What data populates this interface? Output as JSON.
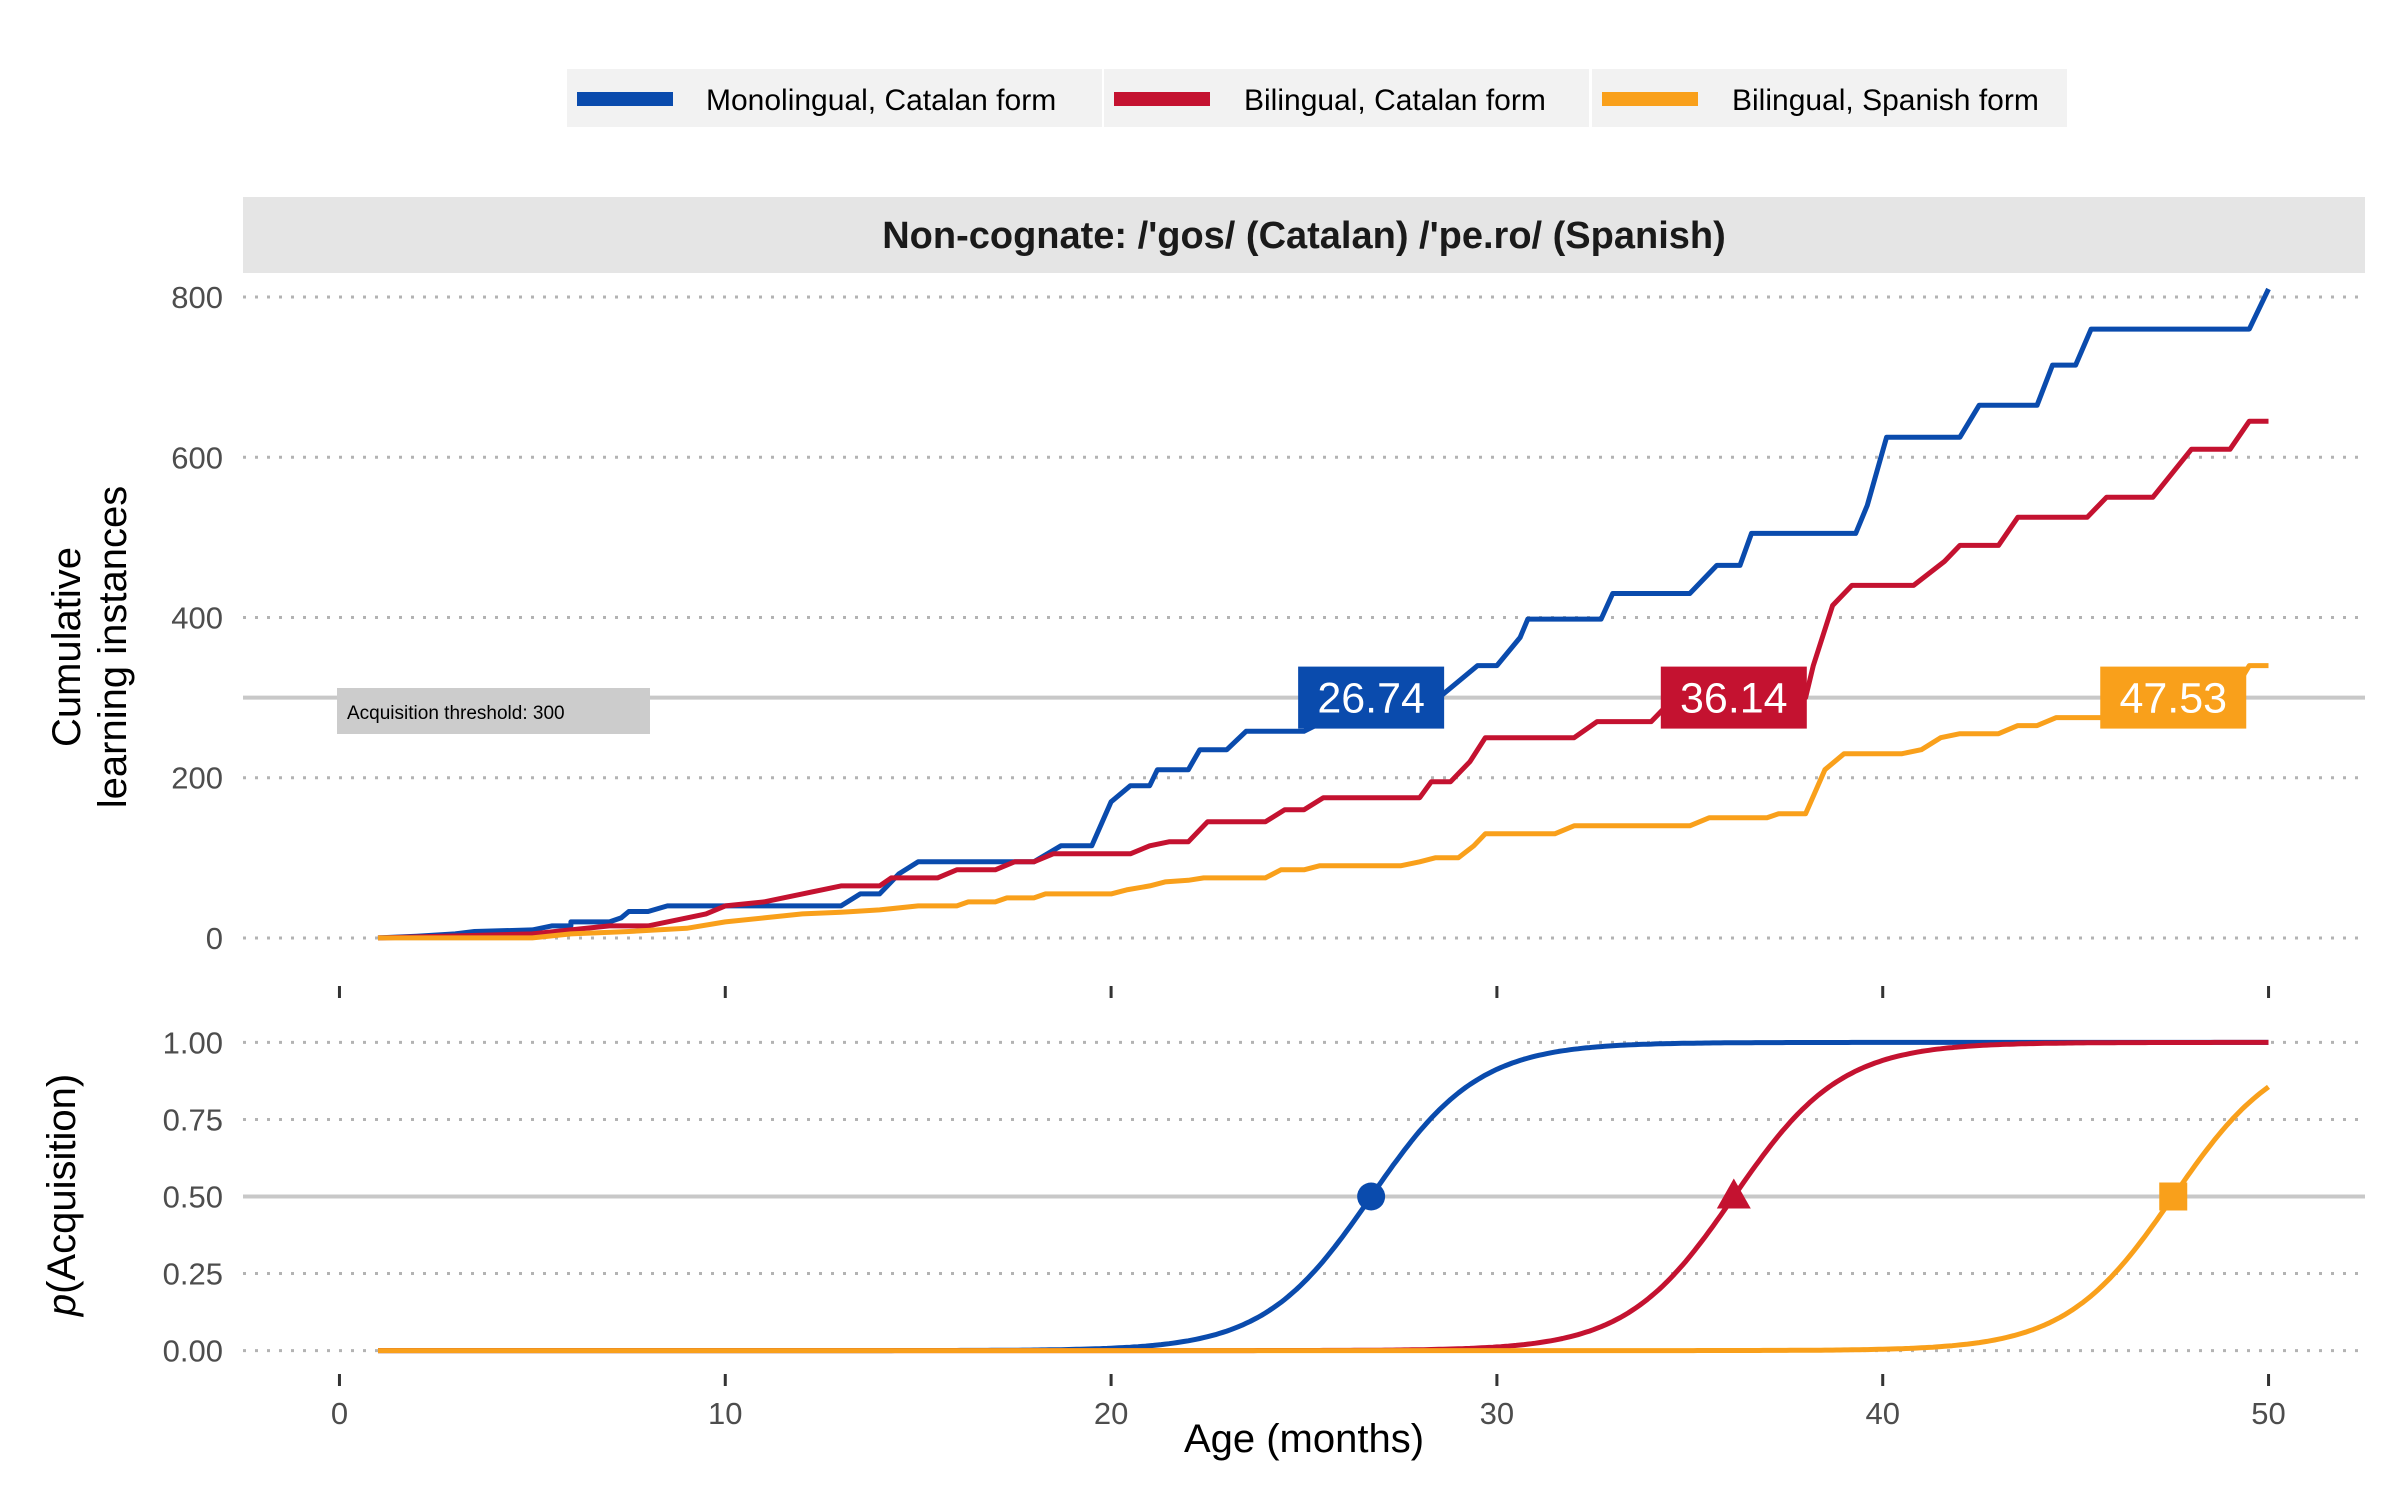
{
  "legend": {
    "items": [
      {
        "label": "Monolingual, Catalan form",
        "color": "#0a4bad"
      },
      {
        "label": "Bilingual, Catalan form",
        "color": "#c41230"
      },
      {
        "label": "Bilingual, Spanish form",
        "color": "#f9a01b"
      }
    ]
  },
  "strip": {
    "title": "Non-cognate: /'gos/ (Catalan) /'pe.ro/ (Spanish)"
  },
  "threshold": {
    "label": "Acquisition threshold: 300",
    "value": 300
  },
  "chart_data": [
    {
      "type": "line",
      "panel": "top",
      "ylabel": [
        "Cumulative",
        "learning instances"
      ],
      "xlim": [
        -2.5,
        52.5
      ],
      "ylim": [
        -50,
        830
      ],
      "xticks": [
        0,
        10,
        20,
        30,
        40,
        50
      ],
      "yticks": [
        0,
        200,
        400,
        600,
        800
      ],
      "ytick_labels": [
        "0",
        "200",
        "400",
        "600",
        "800"
      ],
      "grid": "horizontal dotted",
      "hline": 300,
      "series": [
        {
          "name": "Monolingual, Catalan form",
          "color": "#0a4bad",
          "points": [
            [
              1,
              0
            ],
            [
              2,
              2
            ],
            [
              3,
              5
            ],
            [
              3.5,
              8
            ],
            [
              5,
              10
            ],
            [
              5.5,
              15
            ],
            [
              6,
              15
            ],
            [
              6,
              20
            ],
            [
              7,
              20
            ],
            [
              7.3,
              25
            ],
            [
              7.5,
              33
            ],
            [
              8,
              33
            ],
            [
              8.5,
              40
            ],
            [
              10,
              40
            ],
            [
              12,
              40
            ],
            [
              13,
              40
            ],
            [
              13.5,
              55
            ],
            [
              14,
              55
            ],
            [
              14.5,
              80
            ],
            [
              15,
              95
            ],
            [
              18,
              95
            ],
            [
              18.7,
              115
            ],
            [
              19.5,
              115
            ],
            [
              20,
              170
            ],
            [
              20.5,
              190
            ],
            [
              21,
              190
            ],
            [
              21.2,
              210
            ],
            [
              22,
              210
            ],
            [
              22.3,
              235
            ],
            [
              23,
              235
            ],
            [
              23.5,
              258
            ],
            [
              25,
              258
            ],
            [
              26.74,
              300
            ],
            [
              28.5,
              300
            ],
            [
              29,
              320
            ],
            [
              29.5,
              340
            ],
            [
              30,
              340
            ],
            [
              30.6,
              375
            ],
            [
              30.8,
              398
            ],
            [
              32,
              398
            ],
            [
              32.7,
              398
            ],
            [
              33,
              430
            ],
            [
              35,
              430
            ],
            [
              35.7,
              465
            ],
            [
              36.3,
              465
            ],
            [
              36.6,
              505
            ],
            [
              38.4,
              505
            ],
            [
              38.8,
              505
            ],
            [
              39.3,
              505
            ],
            [
              39.6,
              540
            ],
            [
              40.1,
              625
            ],
            [
              42,
              625
            ],
            [
              42.5,
              665
            ],
            [
              44,
              665
            ],
            [
              44.4,
              715
            ],
            [
              45,
              715
            ],
            [
              45.4,
              760
            ],
            [
              47,
              760
            ],
            [
              49,
              760
            ],
            [
              49.5,
              760
            ],
            [
              50,
              810
            ]
          ]
        },
        {
          "name": "Bilingual, Catalan form",
          "color": "#c41230",
          "points": [
            [
              1,
              0
            ],
            [
              5,
              5
            ],
            [
              6,
              10
            ],
            [
              7,
              15
            ],
            [
              8,
              15
            ],
            [
              9,
              25
            ],
            [
              9.5,
              30
            ],
            [
              10,
              40
            ],
            [
              11,
              45
            ],
            [
              11.5,
              50
            ],
            [
              12,
              55
            ],
            [
              12.5,
              60
            ],
            [
              13,
              65
            ],
            [
              14,
              65
            ],
            [
              14.3,
              75
            ],
            [
              15.5,
              75
            ],
            [
              16,
              85
            ],
            [
              17,
              85
            ],
            [
              17.5,
              95
            ],
            [
              18,
              95
            ],
            [
              18.5,
              105
            ],
            [
              20,
              105
            ],
            [
              20.5,
              105
            ],
            [
              21,
              115
            ],
            [
              21.5,
              120
            ],
            [
              22,
              120
            ],
            [
              22.5,
              145
            ],
            [
              23,
              145
            ],
            [
              24,
              145
            ],
            [
              24.5,
              160
            ],
            [
              25,
              160
            ],
            [
              25.5,
              175
            ],
            [
              27.5,
              175
            ],
            [
              28,
              175
            ],
            [
              28.3,
              195
            ],
            [
              28.8,
              195
            ],
            [
              29.3,
              220
            ],
            [
              29.7,
              250
            ],
            [
              31,
              250
            ],
            [
              31.5,
              250
            ],
            [
              32,
              250
            ],
            [
              32.6,
              270
            ],
            [
              34,
              270
            ],
            [
              34.3,
              285
            ],
            [
              35,
              290
            ],
            [
              36.14,
              300
            ],
            [
              37.5,
              300
            ],
            [
              38,
              300
            ],
            [
              38.2,
              340
            ],
            [
              38.7,
              415
            ],
            [
              39.2,
              440
            ],
            [
              40,
              440
            ],
            [
              40.8,
              440
            ],
            [
              41.6,
              470
            ],
            [
              42,
              490
            ],
            [
              43,
              490
            ],
            [
              43.5,
              525
            ],
            [
              45,
              525
            ],
            [
              45.3,
              525
            ],
            [
              45.8,
              550
            ],
            [
              47,
              550
            ],
            [
              47.5,
              580
            ],
            [
              48,
              610
            ],
            [
              49,
              610
            ],
            [
              49.5,
              645
            ],
            [
              50,
              645
            ]
          ]
        },
        {
          "name": "Bilingual, Spanish form",
          "color": "#f9a01b",
          "points": [
            [
              1,
              0
            ],
            [
              5,
              0
            ],
            [
              6,
              5
            ],
            [
              7.5,
              8
            ],
            [
              9,
              12
            ],
            [
              10,
              20
            ],
            [
              11,
              25
            ],
            [
              12,
              30
            ],
            [
              13,
              32
            ],
            [
              14,
              35
            ],
            [
              15,
              40
            ],
            [
              16,
              40
            ],
            [
              16.3,
              45
            ],
            [
              17,
              45
            ],
            [
              17.3,
              50
            ],
            [
              18,
              50
            ],
            [
              18.3,
              55
            ],
            [
              20,
              55
            ],
            [
              20.4,
              60
            ],
            [
              21,
              65
            ],
            [
              21.4,
              70
            ],
            [
              22,
              72
            ],
            [
              22.4,
              75
            ],
            [
              24,
              75
            ],
            [
              24.4,
              85
            ],
            [
              25,
              85
            ],
            [
              25.4,
              90
            ],
            [
              27.5,
              90
            ],
            [
              28,
              95
            ],
            [
              28.4,
              100
            ],
            [
              29,
              100
            ],
            [
              29.4,
              115
            ],
            [
              29.7,
              130
            ],
            [
              31,
              130
            ],
            [
              31.5,
              130
            ],
            [
              32,
              140
            ],
            [
              33,
              140
            ],
            [
              34,
              140
            ],
            [
              35,
              140
            ],
            [
              35.5,
              150
            ],
            [
              36.5,
              150
            ],
            [
              37,
              150
            ],
            [
              37.3,
              155
            ],
            [
              38,
              155
            ],
            [
              38.5,
              210
            ],
            [
              39,
              230
            ],
            [
              40.5,
              230
            ],
            [
              41,
              235
            ],
            [
              41.5,
              250
            ],
            [
              42,
              255
            ],
            [
              43,
              255
            ],
            [
              43.5,
              265
            ],
            [
              44,
              265
            ],
            [
              44.5,
              275
            ],
            [
              46,
              275
            ],
            [
              47.53,
              300
            ],
            [
              49,
              300
            ],
            [
              49.5,
              340
            ],
            [
              50,
              340
            ]
          ]
        }
      ],
      "labels": [
        {
          "series": "Monolingual, Catalan form",
          "x": 26.74,
          "y": 300,
          "text": "26.74",
          "color": "#0a4bad"
        },
        {
          "series": "Bilingual, Catalan form",
          "x": 36.14,
          "y": 300,
          "text": "36.14",
          "color": "#c41230"
        },
        {
          "series": "Bilingual, Spanish form",
          "x": 47.53,
          "y": 300,
          "text": "47.53",
          "color": "#f9a01b"
        }
      ]
    },
    {
      "type": "line",
      "panel": "bottom",
      "xlabel": "Age (months)",
      "ylabel_prefix": "p",
      "ylabel_suffix": "(Acquisition)",
      "xlim": [
        -2.5,
        52.5
      ],
      "ylim": [
        -0.05,
        1.05
      ],
      "xticks": [
        0,
        10,
        20,
        30,
        40,
        50
      ],
      "xtick_labels": [
        "0",
        "10",
        "20",
        "30",
        "40",
        "50"
      ],
      "yticks": [
        0,
        0.25,
        0.5,
        0.75,
        1
      ],
      "ytick_labels": [
        "0.00",
        "0.25",
        "0.50",
        "0.75",
        "1.00"
      ],
      "grid": "horizontal dotted",
      "hline": 0.5,
      "series": [
        {
          "name": "Monolingual, Catalan form",
          "color": "#0a4bad",
          "midpoint": 26.74,
          "slope": 0.72,
          "marker": "circle",
          "x_range": [
            1,
            50
          ]
        },
        {
          "name": "Bilingual, Catalan form",
          "color": "#c41230",
          "midpoint": 36.14,
          "slope": 0.72,
          "marker": "triangle",
          "x_range": [
            1,
            50
          ]
        },
        {
          "name": "Bilingual, Spanish form",
          "color": "#f9a01b",
          "midpoint": 47.53,
          "slope": 0.72,
          "marker": "square",
          "x_range": [
            1,
            50
          ]
        }
      ]
    }
  ]
}
